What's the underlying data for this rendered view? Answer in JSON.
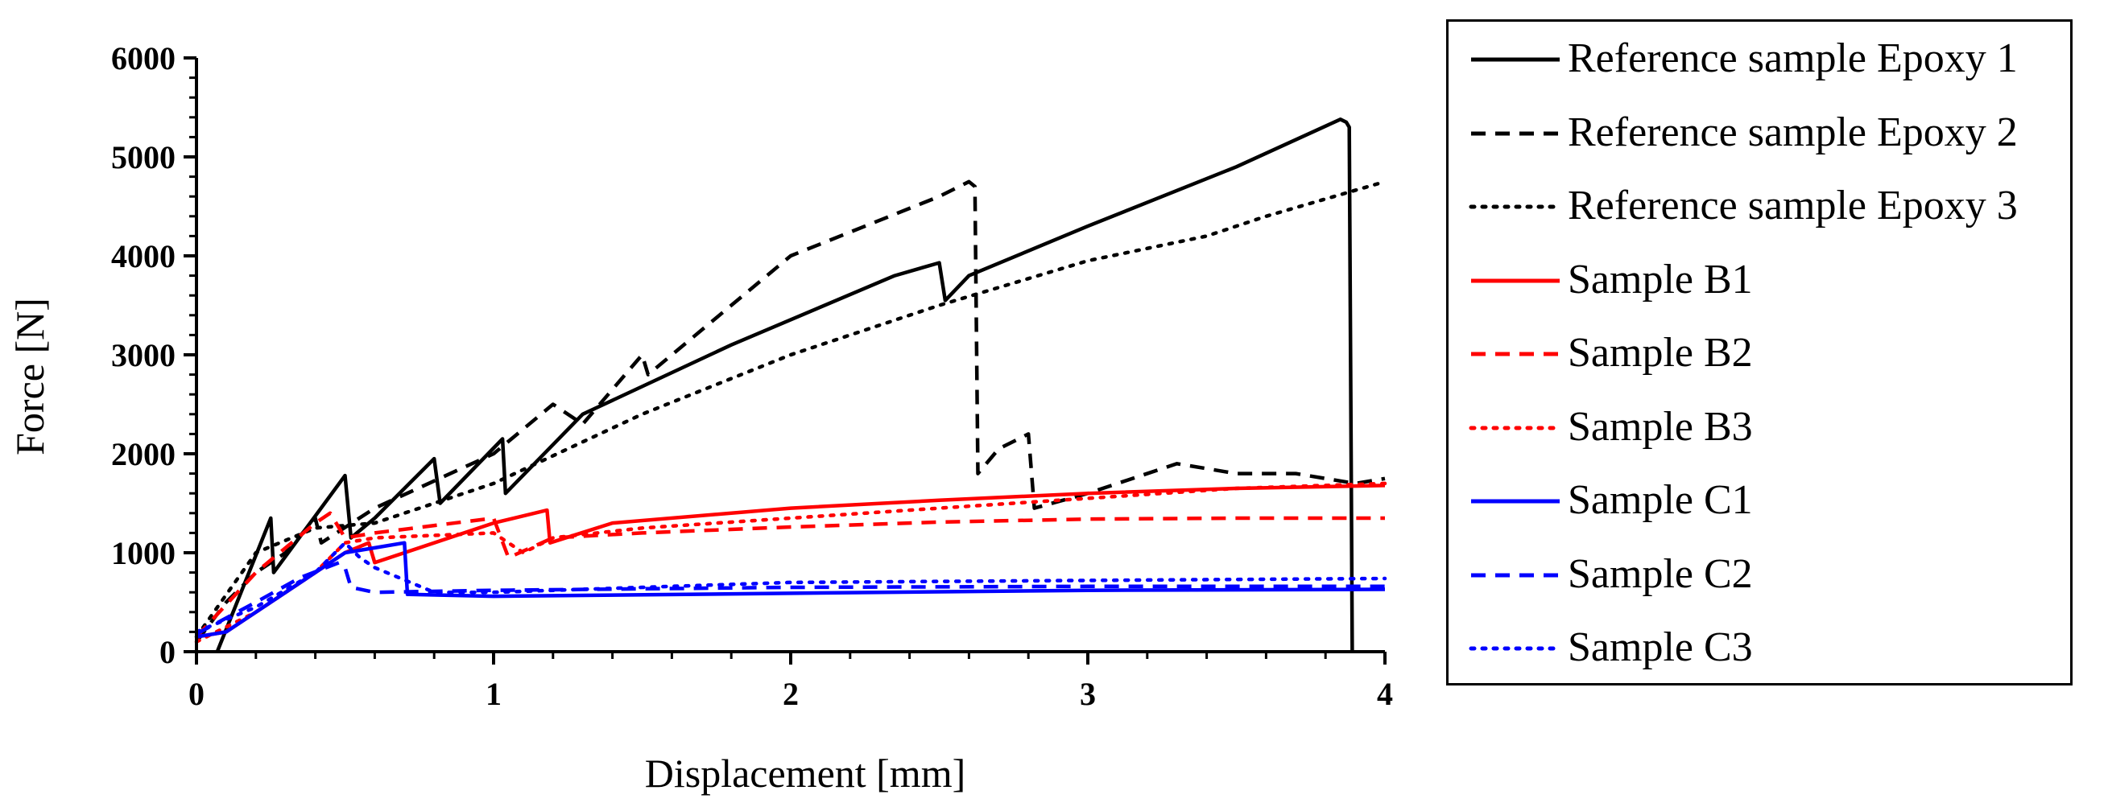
{
  "chart_data": {
    "type": "line",
    "title": "",
    "xlabel": "Displacement [mm]",
    "ylabel": "Force [N]",
    "xlim": [
      0,
      4
    ],
    "ylim": [
      0,
      6000
    ],
    "x_ticks": [
      0,
      1,
      2,
      3,
      4
    ],
    "x_tick_labels": [
      "0",
      "1",
      "2",
      "3",
      "4"
    ],
    "y_ticks": [
      0,
      1000,
      2000,
      3000,
      4000,
      5000,
      6000
    ],
    "y_tick_labels": [
      "0",
      "1000",
      "2000",
      "3000",
      "4000",
      "5000",
      "6000"
    ],
    "legend_position": "outside-right",
    "series": [
      {
        "name": "Reference sample Epoxy 1",
        "color": "#000000",
        "style": "solid",
        "points": [
          [
            0.07,
            0
          ],
          [
            0.25,
            1350
          ],
          [
            0.26,
            800
          ],
          [
            0.5,
            1780
          ],
          [
            0.52,
            1150
          ],
          [
            0.6,
            1350
          ],
          [
            0.8,
            1950
          ],
          [
            0.82,
            1500
          ],
          [
            1.03,
            2150
          ],
          [
            1.04,
            1600
          ],
          [
            1.3,
            2400
          ],
          [
            1.8,
            3100
          ],
          [
            2.35,
            3800
          ],
          [
            2.5,
            3930
          ],
          [
            2.52,
            3550
          ],
          [
            2.6,
            3800
          ],
          [
            3.0,
            4300
          ],
          [
            3.5,
            4900
          ],
          [
            3.85,
            5380
          ],
          [
            3.87,
            5350
          ],
          [
            3.88,
            5300
          ],
          [
            3.89,
            0
          ]
        ]
      },
      {
        "name": "Reference sample Epoxy 2",
        "color": "#000000",
        "style": "dashed",
        "points": [
          [
            0,
            100
          ],
          [
            0.1,
            500
          ],
          [
            0.2,
            800
          ],
          [
            0.3,
            1000
          ],
          [
            0.4,
            1350
          ],
          [
            0.42,
            1100
          ],
          [
            0.6,
            1450
          ],
          [
            1.0,
            2000
          ],
          [
            1.2,
            2500
          ],
          [
            1.3,
            2300
          ],
          [
            1.5,
            3000
          ],
          [
            1.52,
            2800
          ],
          [
            2.0,
            4000
          ],
          [
            2.5,
            4600
          ],
          [
            2.6,
            4750
          ],
          [
            2.62,
            4700
          ],
          [
            2.63,
            1800
          ],
          [
            2.7,
            2050
          ],
          [
            2.8,
            2200
          ],
          [
            2.82,
            1450
          ],
          [
            3.0,
            1600
          ],
          [
            3.3,
            1900
          ],
          [
            3.5,
            1800
          ],
          [
            3.7,
            1800
          ],
          [
            3.9,
            1700
          ],
          [
            4.0,
            1750
          ]
        ]
      },
      {
        "name": "Reference sample Epoxy 3",
        "color": "#000000",
        "style": "dotted",
        "points": [
          [
            0,
            150
          ],
          [
            0.2,
            1000
          ],
          [
            0.4,
            1250
          ],
          [
            0.6,
            1300
          ],
          [
            1.0,
            1700
          ],
          [
            1.5,
            2400
          ],
          [
            2.0,
            3000
          ],
          [
            2.5,
            3500
          ],
          [
            3.0,
            3950
          ],
          [
            3.4,
            4200
          ],
          [
            3.6,
            4400
          ],
          [
            4.0,
            4750
          ]
        ]
      },
      {
        "name": "Sample B1",
        "color": "#ff0000",
        "style": "solid",
        "points": [
          [
            0,
            150
          ],
          [
            0.1,
            200
          ],
          [
            0.3,
            600
          ],
          [
            0.5,
            1000
          ],
          [
            0.58,
            1100
          ],
          [
            0.6,
            900
          ],
          [
            0.7,
            1000
          ],
          [
            1.0,
            1300
          ],
          [
            1.18,
            1430
          ],
          [
            1.19,
            1100
          ],
          [
            1.4,
            1300
          ],
          [
            2.0,
            1450
          ],
          [
            2.5,
            1530
          ],
          [
            3.0,
            1600
          ],
          [
            3.5,
            1650
          ],
          [
            4.0,
            1680
          ]
        ]
      },
      {
        "name": "Sample B2",
        "color": "#ff0000",
        "style": "dashed",
        "points": [
          [
            0,
            150
          ],
          [
            0.2,
            800
          ],
          [
            0.4,
            1300
          ],
          [
            0.45,
            1400
          ],
          [
            0.5,
            1150
          ],
          [
            0.6,
            1200
          ],
          [
            1.0,
            1350
          ],
          [
            1.05,
            950
          ],
          [
            1.2,
            1150
          ],
          [
            1.5,
            1200
          ],
          [
            2.0,
            1260
          ],
          [
            2.5,
            1310
          ],
          [
            3.0,
            1340
          ],
          [
            3.5,
            1350
          ],
          [
            4.0,
            1350
          ]
        ]
      },
      {
        "name": "Sample B3",
        "color": "#ff0000",
        "style": "dotted",
        "points": [
          [
            0,
            100
          ],
          [
            0.2,
            400
          ],
          [
            0.4,
            800
          ],
          [
            0.5,
            1100
          ],
          [
            0.6,
            1150
          ],
          [
            1.0,
            1200
          ],
          [
            1.1,
            1000
          ],
          [
            1.2,
            1150
          ],
          [
            1.5,
            1250
          ],
          [
            2.0,
            1350
          ],
          [
            2.5,
            1450
          ],
          [
            3.0,
            1550
          ],
          [
            3.5,
            1650
          ],
          [
            4.0,
            1700
          ]
        ]
      },
      {
        "name": "Sample C1",
        "color": "#0000ff",
        "style": "solid",
        "points": [
          [
            0,
            150
          ],
          [
            0.1,
            200
          ],
          [
            0.3,
            600
          ],
          [
            0.5,
            1000
          ],
          [
            0.6,
            1050
          ],
          [
            0.7,
            1100
          ],
          [
            0.71,
            580
          ],
          [
            1.0,
            560
          ],
          [
            2.0,
            590
          ],
          [
            3.0,
            620
          ],
          [
            4.0,
            630
          ]
        ]
      },
      {
        "name": "Sample C2",
        "color": "#0000ff",
        "style": "dashed",
        "points": [
          [
            0,
            180
          ],
          [
            0.2,
            500
          ],
          [
            0.35,
            750
          ],
          [
            0.48,
            900
          ],
          [
            0.5,
            850
          ],
          [
            0.52,
            650
          ],
          [
            0.6,
            600
          ],
          [
            1.0,
            620
          ],
          [
            2.0,
            650
          ],
          [
            3.0,
            660
          ],
          [
            4.0,
            660
          ]
        ]
      },
      {
        "name": "Sample C3",
        "color": "#0000ff",
        "style": "dotted",
        "points": [
          [
            0,
            200
          ],
          [
            0.2,
            450
          ],
          [
            0.4,
            800
          ],
          [
            0.5,
            1100
          ],
          [
            0.55,
            950
          ],
          [
            0.6,
            850
          ],
          [
            0.8,
            600
          ],
          [
            1.0,
            600
          ],
          [
            1.5,
            650
          ],
          [
            2.0,
            700
          ],
          [
            3.0,
            720
          ],
          [
            4.0,
            740
          ]
        ]
      }
    ]
  }
}
